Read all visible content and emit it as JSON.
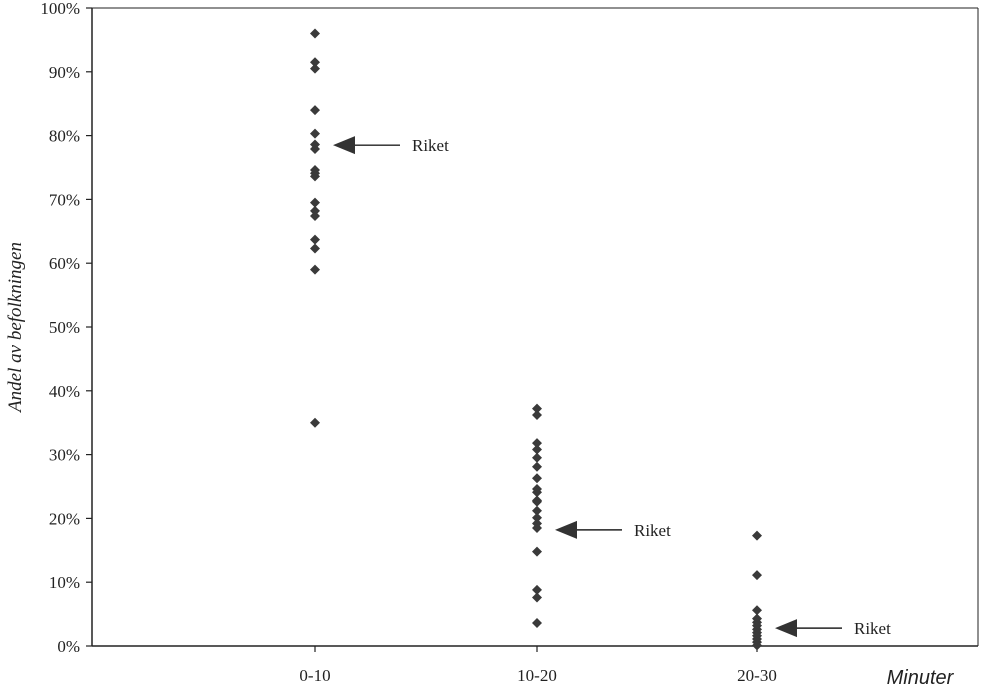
{
  "chart_data": {
    "type": "scatter",
    "xlabel": "Minuter",
    "ylabel": "Andel av befolkningen",
    "ylim": [
      0,
      100
    ],
    "yticks": [
      0,
      10,
      20,
      30,
      40,
      50,
      60,
      70,
      80,
      90,
      100
    ],
    "ytick_labels": [
      "0%",
      "10%",
      "20%",
      "30%",
      "40%",
      "50%",
      "60%",
      "70%",
      "80%",
      "90%",
      "100%"
    ],
    "categories": [
      "0-10",
      "10-20",
      "20-30"
    ],
    "grid": false,
    "marker_color": "#3a3a3a",
    "series": [
      {
        "values": [
          [
            96,
            91.5,
            90.5,
            84,
            80.3,
            78.6,
            77.9,
            74.6,
            74.1,
            73.6,
            69.5,
            68.2,
            67.4,
            63.7,
            62.3,
            59,
            35
          ],
          [
            37.2,
            36.2,
            31.8,
            30.8,
            29.5,
            28.1,
            26.3,
            24.6,
            24.1,
            22.8,
            22.6,
            21.2,
            20.1,
            19.2,
            18.5,
            14.8,
            8.8,
            7.6,
            3.6
          ],
          [
            17.3,
            11.1,
            5.6,
            4.3,
            3.7,
            3.2,
            2.6,
            2.1,
            1.6,
            1.1,
            0.6,
            0.1
          ]
        ]
      }
    ],
    "annotations": [
      {
        "text": "Riket",
        "category": "0-10",
        "y": 78.5
      },
      {
        "text": "Riket",
        "category": "10-20",
        "y": 18.2
      },
      {
        "text": "Riket",
        "category": "20-30",
        "y": 2.8
      }
    ]
  }
}
